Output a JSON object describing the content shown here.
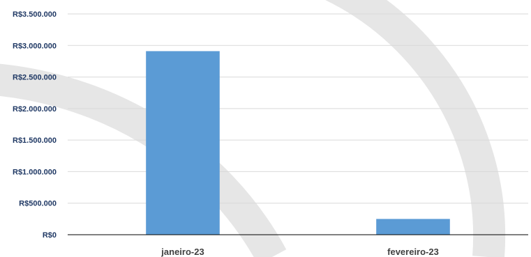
{
  "chart_data": {
    "type": "bar",
    "categories": [
      "janeiro-23",
      "fevereiro-23"
    ],
    "values": [
      2910000,
      250000
    ],
    "y_ticks": [
      "R$0",
      "R$500.000",
      "R$1.000.000",
      "R$1.500.000",
      "R$2.000.000",
      "R$2.500.000",
      "R$3.000.000",
      "R$3.500.000"
    ],
    "ylim": [
      0,
      3500000
    ],
    "grid": true,
    "legend": "none",
    "bar_color": "#5b9bd5",
    "grid_color": "#d9d9d9",
    "axis_color": "#000000",
    "tick_label_color": "#1f3864",
    "category_label_color": "#404040"
  }
}
